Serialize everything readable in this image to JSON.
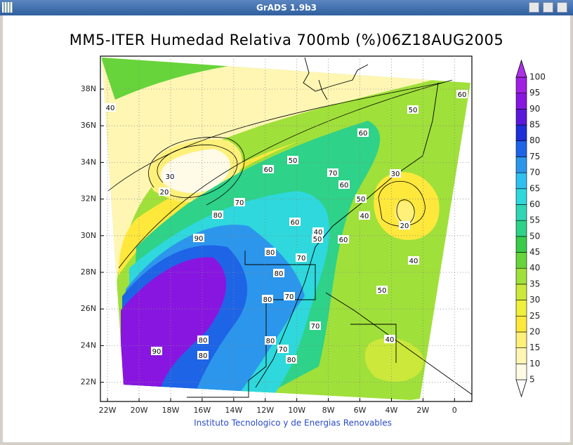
{
  "window": {
    "title": "GrADS 1.9b3"
  },
  "chart_data": {
    "type": "contour-map",
    "title": "MM5-ITER Humedad Relativa 700mb (%)06Z18AUG2005",
    "footer": "Instituto Tecnologico y de Energias Renovables",
    "xlim": [
      -22.45,
      1.1
    ],
    "ylim": [
      20.95,
      39.8
    ],
    "xticks": [
      {
        "value": -22,
        "label": "22W"
      },
      {
        "value": -20,
        "label": "20W"
      },
      {
        "value": -18,
        "label": "18W"
      },
      {
        "value": -16,
        "label": "16W"
      },
      {
        "value": -14,
        "label": "14W"
      },
      {
        "value": -12,
        "label": "12W"
      },
      {
        "value": -10,
        "label": "10W"
      },
      {
        "value": -8,
        "label": "8W"
      },
      {
        "value": -6,
        "label": "6W"
      },
      {
        "value": -4,
        "label": "4W"
      },
      {
        "value": -2,
        "label": "2W"
      },
      0
    ],
    "yticks": [
      {
        "value": 22,
        "label": "22N"
      },
      {
        "value": 24,
        "label": "24N"
      },
      {
        "value": 26,
        "label": "26N"
      },
      {
        "value": 28,
        "label": "28N"
      },
      {
        "value": 30,
        "label": "30N"
      },
      {
        "value": 32,
        "label": "32N"
      },
      {
        "value": 34,
        "label": "34N"
      },
      {
        "value": 36,
        "label": "36N"
      },
      {
        "value": 38,
        "label": "38N"
      }
    ],
    "grid": true,
    "colorbar": {
      "levels": [
        5,
        10,
        15,
        20,
        25,
        30,
        35,
        40,
        45,
        50,
        55,
        60,
        65,
        70,
        75,
        80,
        85,
        90,
        95,
        100
      ],
      "colors": [
        "#ffffff",
        "#fffbe6",
        "#fff6b4",
        "#fff07a",
        "#ffe83c",
        "#eef03c",
        "#cce83a",
        "#a0e03a",
        "#66d43a",
        "#38cc4a",
        "#2ed288",
        "#2ed6b4",
        "#2ed8dc",
        "#30c0f0",
        "#2c96ec",
        "#1e64e6",
        "#1e2ed8",
        "#5a18dc",
        "#8816e0",
        "#a020e4",
        "#b030e8"
      ]
    },
    "contour_labels": [
      40,
      30,
      20,
      50,
      60,
      60,
      50,
      60,
      70,
      60,
      30,
      50,
      70,
      40,
      80,
      60,
      40,
      50,
      60,
      20,
      90,
      80,
      70,
      40,
      80,
      50,
      80,
      70,
      70,
      40,
      80,
      80,
      90,
      70,
      80,
      80
    ]
  }
}
